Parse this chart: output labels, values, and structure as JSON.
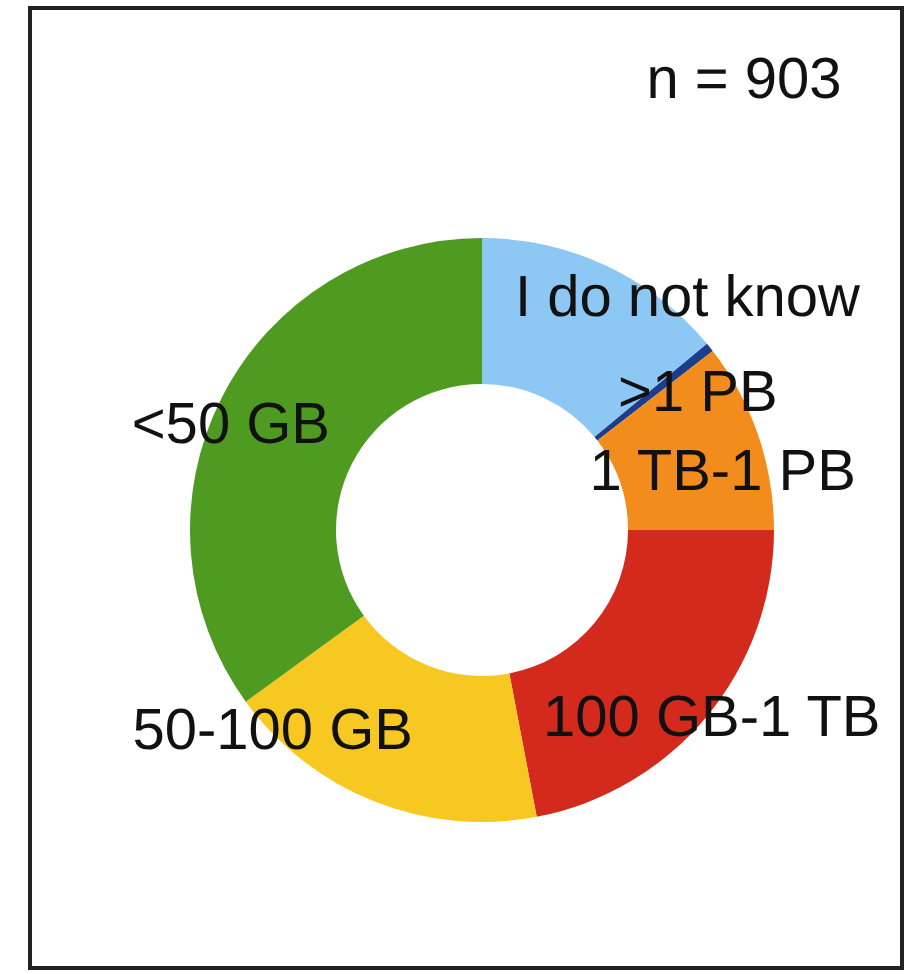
{
  "chart_data": {
    "type": "donut",
    "categories": [
      "I do not know",
      ">1 PB",
      "1 TB-1 PB",
      "100 GB-1 TB",
      "50-100 GB",
      "<50 GB"
    ],
    "values": [
      14,
      0.5,
      10.5,
      22,
      18,
      35
    ],
    "colors": [
      "#8dc8f4",
      "#1b3d8c",
      "#f28c1c",
      "#d42a1e",
      "#f8c822",
      "#4f9a20"
    ],
    "annotations": [
      "n = 903"
    ]
  }
}
